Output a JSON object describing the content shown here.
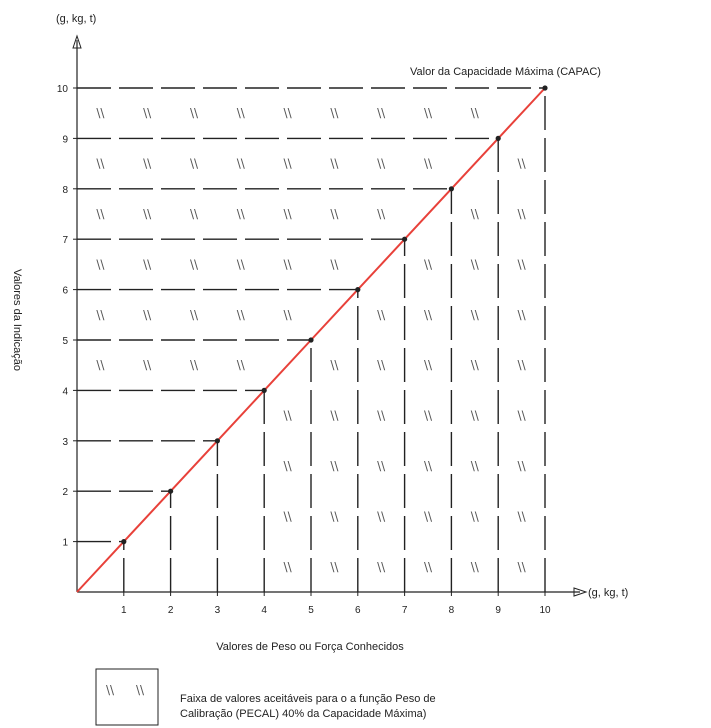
{
  "chart_data": {
    "type": "line",
    "y_unit_label": "(g, kg, t)",
    "x_unit_label": "(g, kg, t)",
    "ylabel": "Valores da Indicação",
    "xlabel": "Valores de Peso ou Força Conhecidos",
    "capacity_label": "Valor da Capacidade Máxima (CAPAC)",
    "x_ticks": [
      "1",
      "2",
      "3",
      "4",
      "5",
      "6",
      "7",
      "8",
      "9",
      "10"
    ],
    "y_ticks": [
      "1",
      "2",
      "3",
      "4",
      "5",
      "6",
      "7",
      "8",
      "9",
      "10"
    ],
    "xlim": [
      0,
      10
    ],
    "ylim": [
      0,
      10
    ],
    "series": [
      {
        "x": [
          0,
          1,
          2,
          3,
          4,
          5,
          6,
          7,
          8,
          9,
          10
        ],
        "y": [
          0,
          1,
          2,
          3,
          4,
          5,
          6,
          7,
          8,
          9,
          10
        ]
      }
    ],
    "hatch_threshold": 4,
    "line_color": "#e8413a",
    "legend": {
      "symbol": "\\\\",
      "text_line1": "Faixa de valores aceitáveis para o a função Peso de",
      "text_line2": "Calibração (PECAL) 40% da Capacidade Máxima)"
    }
  }
}
